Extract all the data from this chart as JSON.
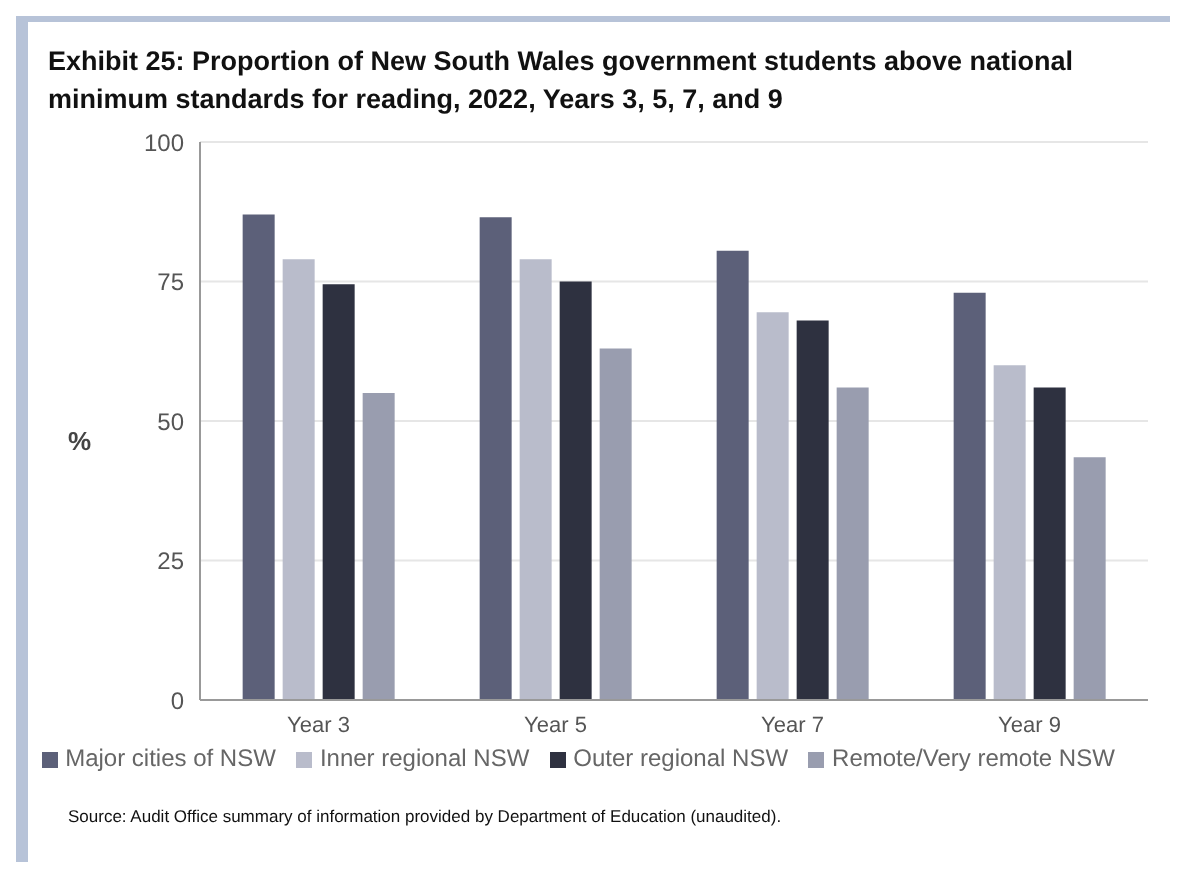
{
  "chart_data": {
    "type": "bar",
    "title": "Exhibit 25: Proportion of New South Wales government students above national minimum standards for reading, 2022, Years 3, 5, 7, and 9",
    "ylabel": "%",
    "categories": [
      "Year 3",
      "Year 5",
      "Year 7",
      "Year 9"
    ],
    "series": [
      {
        "name": "Major cities of NSW",
        "color": "#5c6079",
        "values": [
          87,
          86.5,
          80.5,
          73
        ]
      },
      {
        "name": "Inner regional NSW",
        "color": "#b9bccb",
        "values": [
          79,
          79,
          69.5,
          60
        ]
      },
      {
        "name": "Outer regional NSW",
        "color": "#2e3140",
        "values": [
          74.5,
          75,
          68,
          56
        ]
      },
      {
        "name": "Remote/Very remote NSW",
        "color": "#999daf",
        "values": [
          55,
          63,
          56,
          43.5
        ]
      }
    ],
    "ylim": [
      0,
      100
    ],
    "yticks": [
      0,
      25,
      50,
      75,
      100
    ],
    "grid": "y",
    "legend": "bottom",
    "annotations": [
      "Source: Audit Office summary of information provided by Department of Education (unaudited)."
    ]
  }
}
